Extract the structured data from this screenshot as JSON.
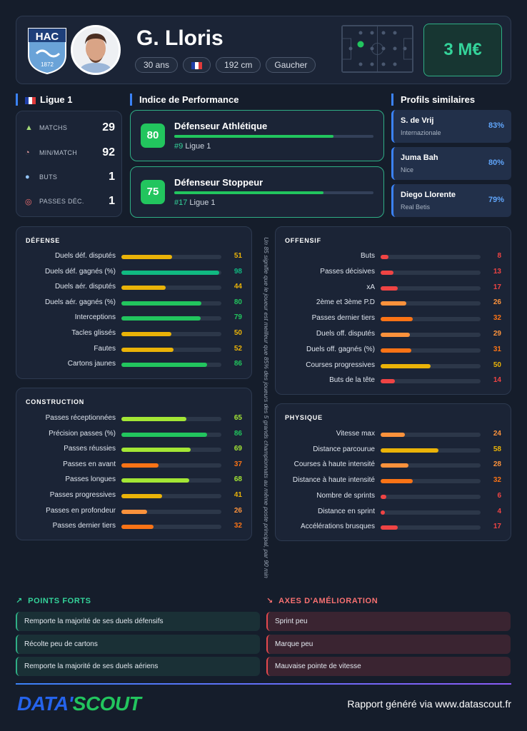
{
  "header": {
    "player_name": "G. Lloris",
    "club_logo_text": "HAC",
    "club_logo_year": "1872",
    "age": "30 ans",
    "height": "192 cm",
    "foot": "Gaucher",
    "market_value": "3 M€"
  },
  "league": {
    "name": "Ligue 1",
    "stats": [
      {
        "label": "MATCHS",
        "value": "29",
        "icon": "pitch-icon"
      },
      {
        "label": "MIN/MATCH",
        "value": "92",
        "icon": "stopwatch-icon"
      },
      {
        "label": "BUTS",
        "value": "1",
        "icon": "ball-icon"
      },
      {
        "label": "PASSES DÉC.",
        "value": "1",
        "icon": "target-icon"
      }
    ]
  },
  "performance": {
    "title": "Indice de Performance",
    "items": [
      {
        "score": "80",
        "title": "Défenseur Athlétique",
        "rank": "#9",
        "league": "Ligue 1",
        "progress": 0.8
      },
      {
        "score": "75",
        "title": "Défenseur Stoppeur",
        "rank": "#17",
        "league": "Ligue 1",
        "progress": 0.75
      }
    ]
  },
  "similar": {
    "title": "Profils similaires",
    "items": [
      {
        "name": "S. de Vrij",
        "club": "Internazionale",
        "pct": "83%"
      },
      {
        "name": "Juma Bah",
        "club": "Nice",
        "pct": "80%"
      },
      {
        "name": "Diego Llorente",
        "club": "Real Betis",
        "pct": "79%"
      }
    ]
  },
  "sections": {
    "defense": {
      "title": "DÉFENSE",
      "rows": [
        {
          "label": "Duels déf. disputés",
          "value": 51
        },
        {
          "label": "Duels déf. gagnés (%)",
          "value": 98
        },
        {
          "label": "Duels aér. disputés",
          "value": 44
        },
        {
          "label": "Duels aér. gagnés (%)",
          "value": 80
        },
        {
          "label": "Interceptions",
          "value": 79
        },
        {
          "label": "Tacles glissés",
          "value": 50
        },
        {
          "label": "Fautes",
          "value": 52
        },
        {
          "label": "Cartons jaunes",
          "value": 86
        }
      ]
    },
    "construction": {
      "title": "CONSTRUCTION",
      "rows": [
        {
          "label": "Passes réceptionnées",
          "value": 65
        },
        {
          "label": "Précision passes (%)",
          "value": 86
        },
        {
          "label": "Passes réussies",
          "value": 69
        },
        {
          "label": "Passes en avant",
          "value": 37
        },
        {
          "label": "Passes longues",
          "value": 68
        },
        {
          "label": "Passes progressives",
          "value": 41
        },
        {
          "label": "Passes en profondeur",
          "value": 26
        },
        {
          "label": "Passes dernier tiers",
          "value": 32
        }
      ]
    },
    "offensif": {
      "title": "OFFENSIF",
      "rows": [
        {
          "label": "Buts",
          "value": 8
        },
        {
          "label": "Passes décisives",
          "value": 13
        },
        {
          "label": "xA",
          "value": 17
        },
        {
          "label": "2ème et 3ème P.D",
          "value": 26
        },
        {
          "label": "Passes dernier tiers",
          "value": 32
        },
        {
          "label": "Duels off. disputés",
          "value": 29
        },
        {
          "label": "Duels off. gagnés (%)",
          "value": 31
        },
        {
          "label": "Courses progressives",
          "value": 50
        },
        {
          "label": "Buts de la tête",
          "value": 14
        }
      ]
    },
    "physique": {
      "title": "PHYSIQUE",
      "rows": [
        {
          "label": "Vitesse max",
          "value": 24
        },
        {
          "label": "Distance parcourue",
          "value": 58
        },
        {
          "label": "Courses à haute intensité",
          "value": 28
        },
        {
          "label": "Distance à haute intensité",
          "value": 32
        },
        {
          "label": "Nombre de sprints",
          "value": 6
        },
        {
          "label": "Distance en sprint",
          "value": 4
        },
        {
          "label": "Accélérations brusques",
          "value": 17
        }
      ]
    }
  },
  "note": "Un 85 signifie que le joueur est meilleur que 85% des joueurs des 5 grands championnats au même poste principal, par 90 min",
  "strengths": {
    "title": "POINTS FORTS",
    "items": [
      "Remporte la majorité de ses duels défensifs",
      "Récolte peu de cartons",
      "Remporte la majorité de ses duels aériens"
    ]
  },
  "improvements": {
    "title": "AXES D'AMÉLIORATION",
    "items": [
      "Sprint peu",
      "Marque peu",
      "Mauvaise pointe de vitesse"
    ]
  },
  "footer": {
    "brand_left": "DATA'",
    "brand_right": "SCOUT",
    "generated": "Rapport généré via www.datascout.fr"
  },
  "colors": {
    "green": "#22c55e",
    "teal": "#10b981",
    "lime": "#a3e635",
    "yellow": "#eab308",
    "orange": "#f97316",
    "orange_light": "#fb923c",
    "red": "#ef4444",
    "accent_blue": "#3b82f6"
  }
}
